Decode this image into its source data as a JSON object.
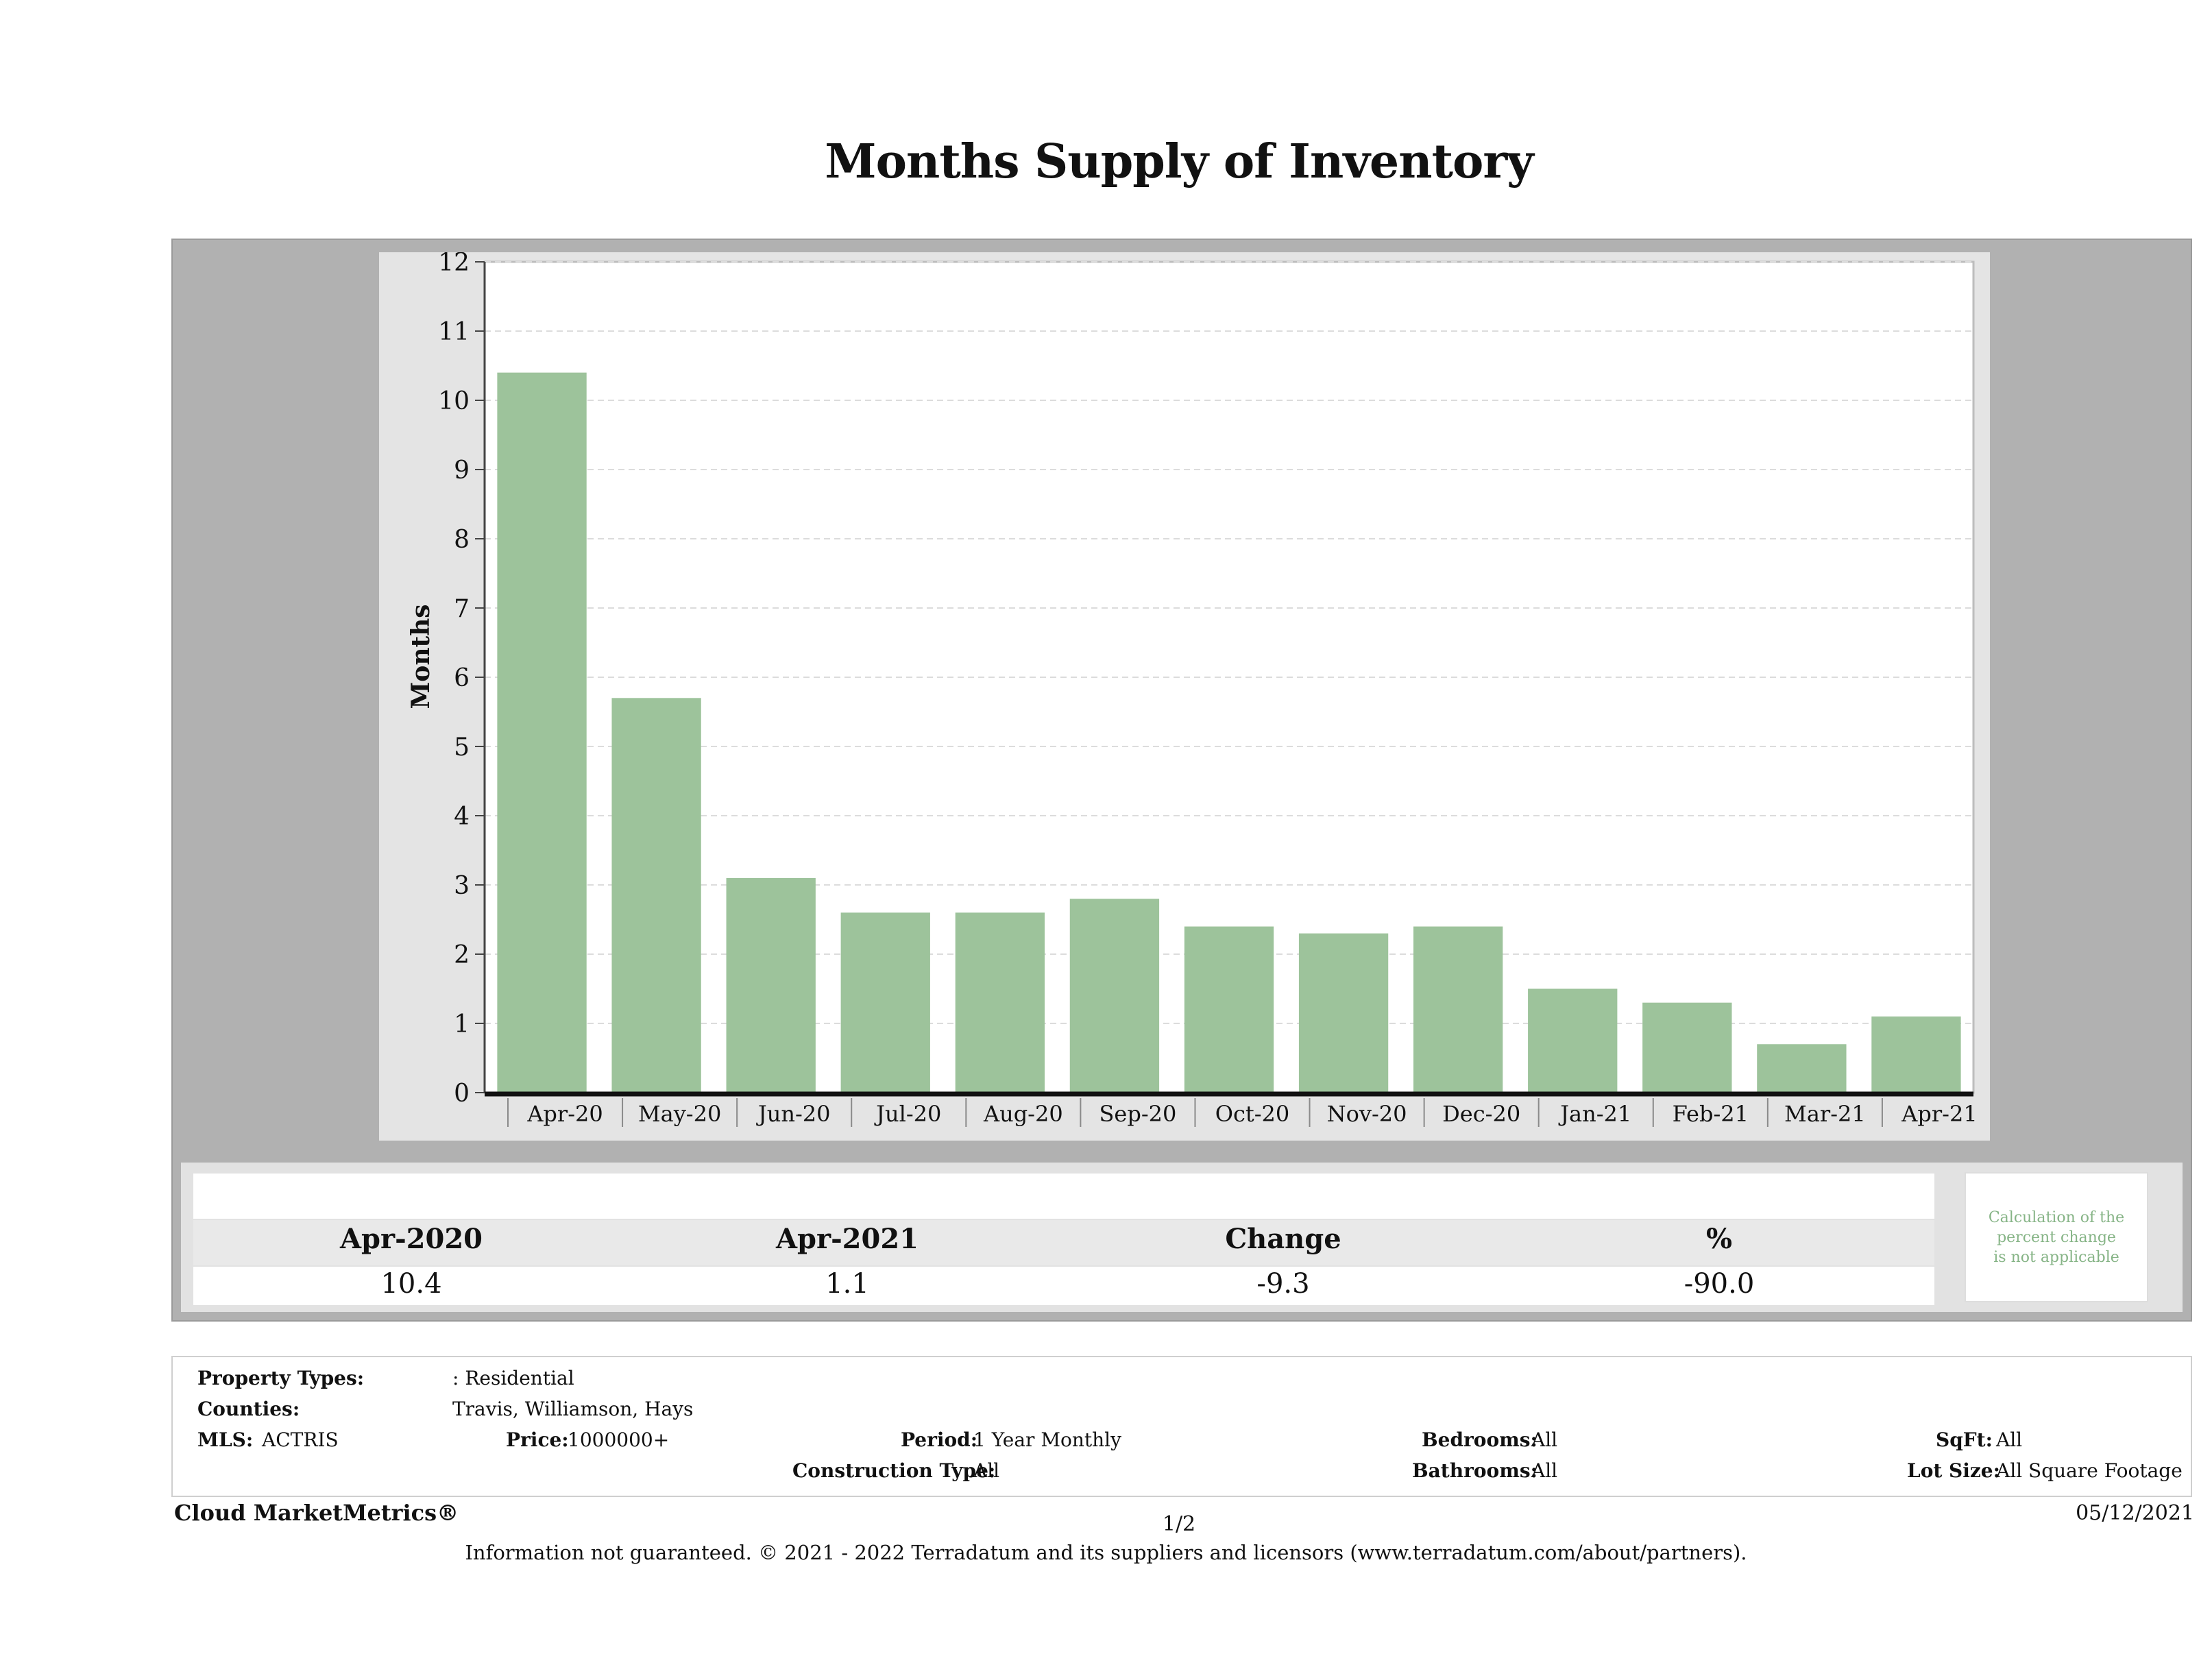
{
  "chart_data": {
    "type": "bar",
    "title": "Months Supply of Inventory",
    "xlabel": "",
    "ylabel": "Months",
    "ylim": [
      0,
      12
    ],
    "yticks": [
      0,
      1,
      2,
      3,
      4,
      5,
      6,
      7,
      8,
      9,
      10,
      11,
      12
    ],
    "grid": true,
    "categories": [
      "Apr-20",
      "May-20",
      "Jun-20",
      "Jul-20",
      "Aug-20",
      "Sep-20",
      "Oct-20",
      "Nov-20",
      "Dec-20",
      "Jan-21",
      "Feb-21",
      "Mar-21",
      "Apr-21"
    ],
    "values": [
      10.4,
      5.7,
      3.1,
      2.6,
      2.6,
      2.8,
      2.4,
      2.3,
      2.4,
      1.5,
      1.3,
      0.7,
      1.1
    ],
    "bar_color": "#9dc39b"
  },
  "summary": {
    "headers": [
      "Apr-2020",
      "Apr-2021",
      "Change",
      "%"
    ],
    "values": [
      "10.4",
      "1.1",
      "-9.3",
      "-90.0"
    ],
    "note": "Calculation of the\npercent change\nis not applicable"
  },
  "filters": {
    "property_types_label": "Property Types:",
    "property_types_value": ": Residential",
    "counties_label": "Counties:",
    "counties_value": "Travis, Williamson, Hays",
    "mls_label": "MLS:",
    "mls_value": "ACTRIS",
    "price_label": "Price:",
    "price_value": "1000000+",
    "period_label": "Period:",
    "period_value": "1 Year Monthly",
    "construction_label": "Construction Type:",
    "construction_value": "All",
    "bedrooms_label": "Bedrooms:",
    "bedrooms_value": "All",
    "bathrooms_label": "Bathrooms:",
    "bathrooms_value": "All",
    "sqft_label": "SqFt:",
    "sqft_value": "All",
    "lot_label": "Lot Size:",
    "lot_value": "All Square Footage"
  },
  "footer": {
    "brand": "Cloud MarketMetrics®",
    "page": "1/2",
    "date": "05/12/2021",
    "disclaimer": "Information not guaranteed. © 2021 - 2022 Terradatum and its suppliers and licensors (www.terradatum.com/about/partners)."
  },
  "colors": {
    "panel_gray": "#b1b1b1",
    "chart_bg": "#e4e4e4",
    "bar": "#9dc39b",
    "note_text": "#86b486"
  }
}
